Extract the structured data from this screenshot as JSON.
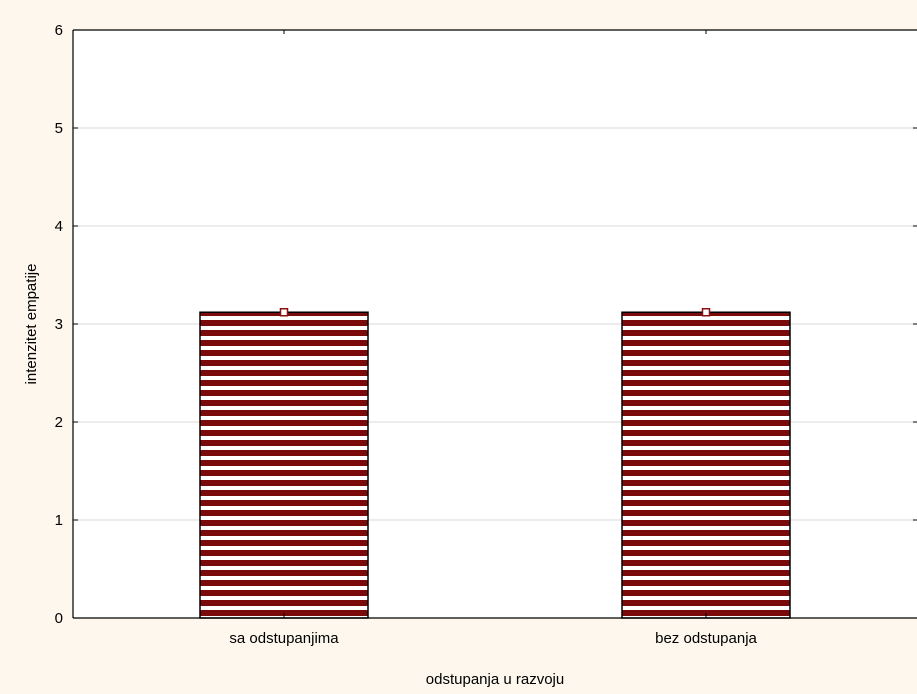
{
  "chart_data": {
    "type": "bar",
    "title": "",
    "xlabel": "odstupanja u razvoju",
    "ylabel": "intenzitet empatije",
    "categories": [
      "sa odstupanjima",
      "bez odstupanja"
    ],
    "series": [
      {
        "values": [
          3.12,
          3.12
        ]
      }
    ],
    "ylim": [
      0,
      6
    ],
    "yticks": [
      "0",
      "1",
      "2",
      "3",
      "4",
      "5",
      "6"
    ],
    "grid": true,
    "legend": "none",
    "colors": {
      "bar_stripe": "#7b0a0a",
      "bar_gap": "#ffffff",
      "marker": "#8b1010",
      "background": "#fdf7ee",
      "plot_bg": "#ffffff",
      "grid": "#d8d8d8"
    }
  }
}
